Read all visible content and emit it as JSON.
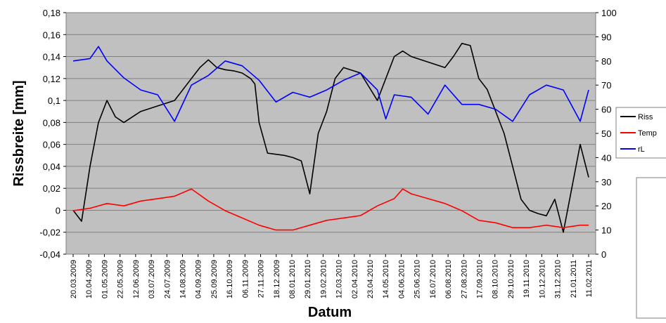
{
  "chart_data": {
    "type": "line",
    "xlabel": "Datum",
    "ylabel": "Rissbreite [mm]",
    "y_left_range": [
      -0.04,
      0.18
    ],
    "y_right_range": [
      0,
      100
    ],
    "grid": true,
    "legend_placement": "right",
    "y_left_ticks": [
      "-0,04",
      "-0,02",
      "0",
      "0,02",
      "0,04",
      "0,06",
      "0,08",
      "0,1",
      "0,12",
      "0,14",
      "0,16",
      "0,18"
    ],
    "y_right_ticks": [
      "0",
      "10",
      "20",
      "30",
      "40",
      "50",
      "60",
      "70",
      "80",
      "90",
      "100"
    ],
    "x_ticks": [
      "20.03.2009",
      "10.04.2009",
      "01.05.2009",
      "22.05.2009",
      "12.06.2009",
      "03.07.2009",
      "24.07.2009",
      "14.08.2009",
      "04.09.2009",
      "25.09.2009",
      "16.10.2009",
      "06.11.2009",
      "27.11.2009",
      "18.12.2009",
      "08.01.2010",
      "29.01.2010",
      "19.02.2010",
      "12.03.2010",
      "02.04.2010",
      "23.04.2010",
      "14.05.2010",
      "04.06.2010",
      "25.06.2010",
      "16.07.2010",
      "06.08.2010",
      "27.08.2010",
      "17.09.2010",
      "08.10.2010",
      "29.10.2010",
      "19.11.2010",
      "10.12.2010",
      "31.12.2010",
      "21.01.2011",
      "11.02.2011"
    ],
    "series": [
      {
        "name": "Riss",
        "axis": "left",
        "color": "#000000",
        "points": [
          [
            0,
            0.0
          ],
          [
            1,
            -0.01
          ],
          [
            2,
            0.04
          ],
          [
            3,
            0.08
          ],
          [
            4,
            0.1
          ],
          [
            5,
            0.085
          ],
          [
            6,
            0.08
          ],
          [
            8,
            0.09
          ],
          [
            10,
            0.095
          ],
          [
            12,
            0.1
          ],
          [
            14,
            0.12
          ],
          [
            15,
            0.13
          ],
          [
            16,
            0.137
          ],
          [
            17,
            0.13
          ],
          [
            18,
            0.128
          ],
          [
            19,
            0.127
          ],
          [
            20,
            0.125
          ],
          [
            21,
            0.12
          ],
          [
            21.5,
            0.115
          ],
          [
            22,
            0.08
          ],
          [
            23,
            0.052
          ],
          [
            25,
            0.05
          ],
          [
            26,
            0.048
          ],
          [
            27,
            0.045
          ],
          [
            28,
            0.015
          ],
          [
            29,
            0.07
          ],
          [
            30,
            0.09
          ],
          [
            31,
            0.12
          ],
          [
            32,
            0.13
          ],
          [
            34,
            0.125
          ],
          [
            36,
            0.1
          ],
          [
            37,
            0.12
          ],
          [
            38,
            0.14
          ],
          [
            39,
            0.145
          ],
          [
            40,
            0.14
          ],
          [
            42,
            0.135
          ],
          [
            44,
            0.13
          ],
          [
            45,
            0.14
          ],
          [
            46,
            0.152
          ],
          [
            47,
            0.15
          ],
          [
            48,
            0.12
          ],
          [
            49,
            0.11
          ],
          [
            50,
            0.09
          ],
          [
            51,
            0.07
          ],
          [
            52,
            0.04
          ],
          [
            53,
            0.01
          ],
          [
            54,
            0.0
          ],
          [
            55,
            -0.003
          ],
          [
            56,
            -0.005
          ],
          [
            57,
            0.01
          ],
          [
            58,
            -0.02
          ],
          [
            59,
            0.02
          ],
          [
            60,
            0.06
          ],
          [
            61,
            0.03
          ]
        ]
      },
      {
        "name": "Temp",
        "axis": "right",
        "color": "#ff0000",
        "points": [
          [
            0,
            18
          ],
          [
            2,
            19
          ],
          [
            4,
            21
          ],
          [
            6,
            20
          ],
          [
            8,
            22
          ],
          [
            10,
            23
          ],
          [
            12,
            24
          ],
          [
            14,
            27
          ],
          [
            16,
            22
          ],
          [
            18,
            18
          ],
          [
            20,
            15
          ],
          [
            22,
            12
          ],
          [
            24,
            10
          ],
          [
            26,
            10
          ],
          [
            28,
            12
          ],
          [
            30,
            14
          ],
          [
            32,
            15
          ],
          [
            34,
            16
          ],
          [
            36,
            20
          ],
          [
            38,
            23
          ],
          [
            39,
            27
          ],
          [
            40,
            25
          ],
          [
            42,
            23
          ],
          [
            44,
            21
          ],
          [
            46,
            18
          ],
          [
            48,
            14
          ],
          [
            50,
            13
          ],
          [
            52,
            11
          ],
          [
            54,
            11
          ],
          [
            56,
            12
          ],
          [
            58,
            11
          ],
          [
            60,
            12
          ],
          [
            61,
            12
          ]
        ]
      },
      {
        "name": "rL",
        "axis": "right",
        "color": "#0000ff",
        "points": [
          [
            0,
            80
          ],
          [
            2,
            81
          ],
          [
            3,
            86
          ],
          [
            4,
            80
          ],
          [
            6,
            73
          ],
          [
            8,
            68
          ],
          [
            10,
            66
          ],
          [
            12,
            55
          ],
          [
            14,
            70
          ],
          [
            16,
            74
          ],
          [
            18,
            80
          ],
          [
            20,
            78
          ],
          [
            22,
            72
          ],
          [
            24,
            63
          ],
          [
            26,
            67
          ],
          [
            28,
            65
          ],
          [
            30,
            68
          ],
          [
            32,
            72
          ],
          [
            34,
            75
          ],
          [
            36,
            68
          ],
          [
            37,
            56
          ],
          [
            38,
            66
          ],
          [
            40,
            65
          ],
          [
            42,
            58
          ],
          [
            44,
            70
          ],
          [
            46,
            62
          ],
          [
            48,
            62
          ],
          [
            50,
            60
          ],
          [
            52,
            55
          ],
          [
            54,
            66
          ],
          [
            56,
            70
          ],
          [
            58,
            68
          ],
          [
            60,
            55
          ],
          [
            61,
            68
          ]
        ]
      }
    ]
  },
  "legend": {
    "items": [
      {
        "label": "Riss",
        "color": "#000000"
      },
      {
        "label": "Temp",
        "color": "#ff0000"
      },
      {
        "label": "rL",
        "color": "#0000ff"
      }
    ]
  },
  "colors": {
    "plot_background": "#c0c0c0",
    "gridline": "#808080"
  }
}
